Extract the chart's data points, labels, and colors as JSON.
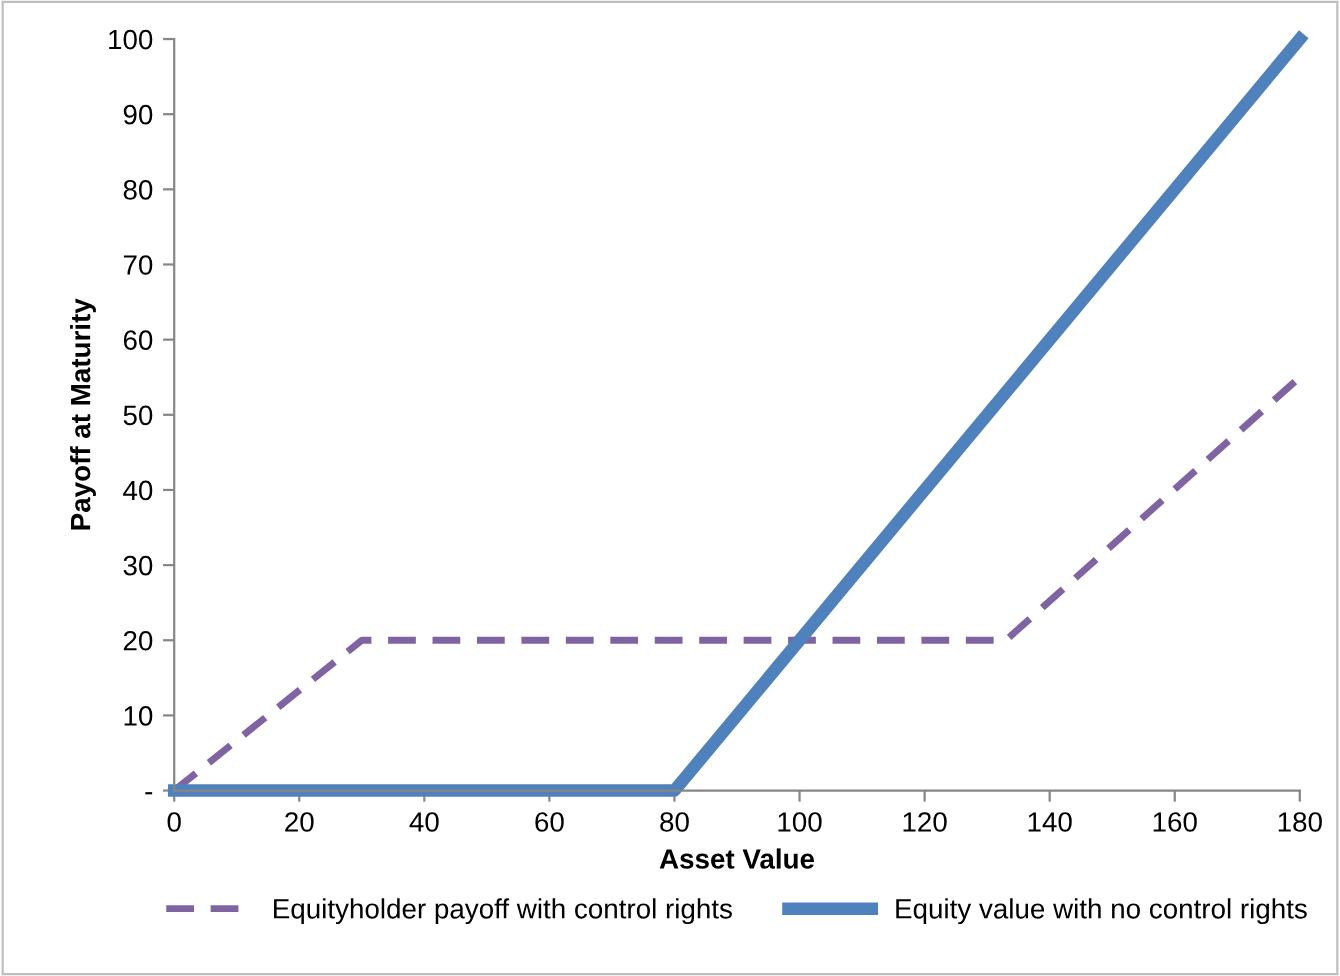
{
  "chart_data": {
    "type": "line",
    "xlabel": "Asset Value",
    "ylabel": "Payoff at Maturity",
    "series": [
      {
        "name": "Equityholder payoff with control rights",
        "color": "#8064a2",
        "line_style": "dashed",
        "x": [
          0,
          30,
          133,
          180
        ],
        "values": [
          0,
          20,
          20,
          55
        ]
      },
      {
        "name": "Equity value with no control rights",
        "color": "#4f81bd",
        "line_style": "solid",
        "x": [
          0,
          80,
          180
        ],
        "values": [
          0,
          0,
          100
        ]
      }
    ],
    "xlim": [
      0,
      180
    ],
    "xticks": [
      0,
      20,
      40,
      60,
      80,
      100,
      120,
      140,
      160,
      180
    ],
    "ylim": [
      0,
      100
    ],
    "yticks": [
      {
        "value": 0,
        "label": "-"
      },
      10,
      20,
      30,
      40,
      50,
      60,
      70,
      80,
      90,
      100
    ],
    "grid": false,
    "legend": "bottom"
  }
}
